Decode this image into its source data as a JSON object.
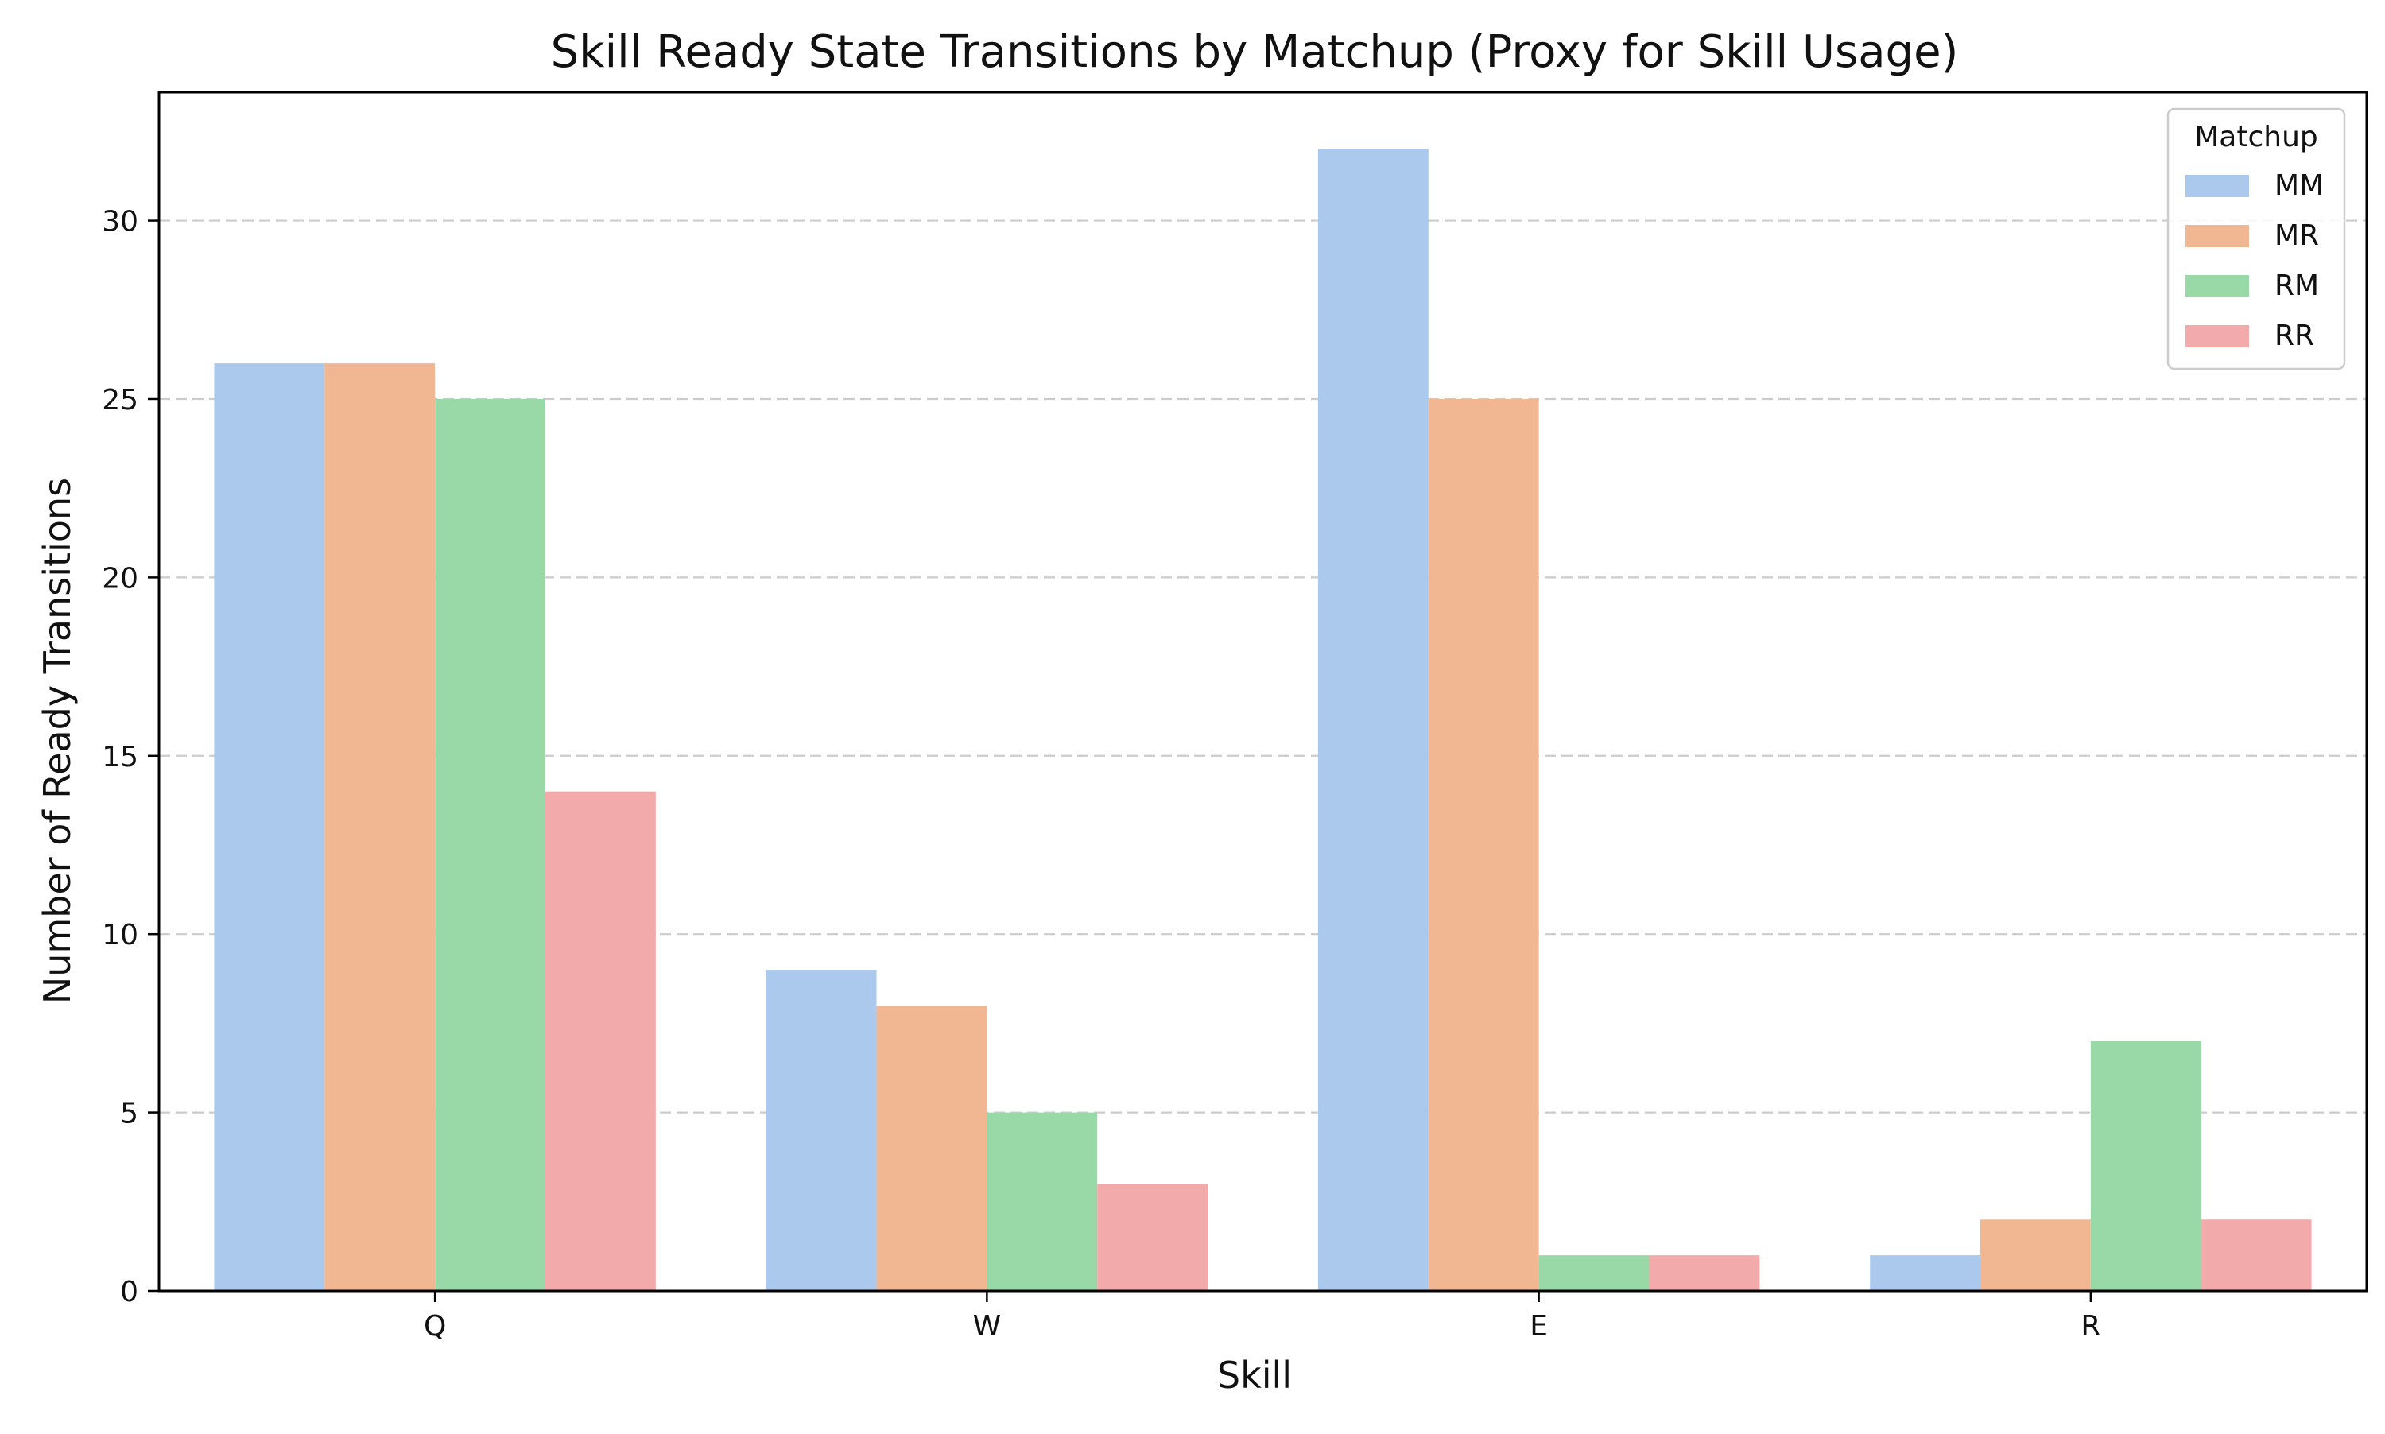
{
  "chart_data": {
    "type": "bar",
    "title": "Skill Ready State Transitions by Matchup (Proxy for Skill Usage)",
    "xlabel": "Skill",
    "ylabel": "Number of Ready Transitions",
    "categories": [
      "Q",
      "W",
      "E",
      "R"
    ],
    "series": [
      {
        "name": "MM",
        "values": [
          26,
          9,
          32,
          1
        ],
        "color": "#abc9ed"
      },
      {
        "name": "MR",
        "values": [
          26,
          8,
          25,
          2
        ],
        "color": "#f0b792"
      },
      {
        "name": "RM",
        "values": [
          25,
          5,
          1,
          7
        ],
        "color": "#99d9a8"
      },
      {
        "name": "RR",
        "values": [
          14,
          3,
          1,
          2
        ],
        "color": "#f2aaaa"
      }
    ],
    "ylim": [
      0,
      33.6
    ],
    "yticks": [
      0,
      5,
      10,
      15,
      20,
      25,
      30
    ],
    "grid": {
      "y": true,
      "style": "dashed",
      "color": "#cccccc"
    },
    "legend": {
      "title": "Matchup",
      "position": "top-right"
    }
  }
}
